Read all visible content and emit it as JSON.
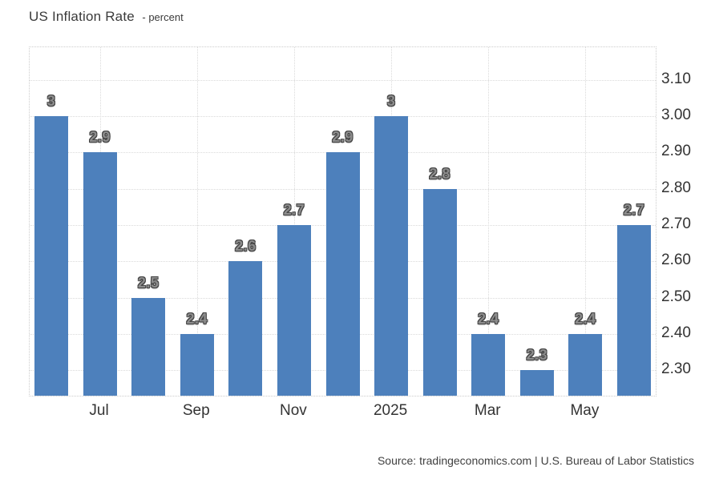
{
  "header": {
    "title": "US Inflation Rate",
    "subtitle": "- percent"
  },
  "footer": {
    "source": "Source: tradingeconomics.com | U.S. Bureau of Labor Statistics"
  },
  "chart_data": {
    "type": "bar",
    "title": "US Inflation Rate",
    "unit": "percent",
    "bar_color": "#4d80bc",
    "grid": true,
    "axis_side": "right",
    "ylim": [
      2.23,
      3.19
    ],
    "y_ticks": [
      {
        "value": 2.3,
        "label": "2.30"
      },
      {
        "value": 2.4,
        "label": "2.40"
      },
      {
        "value": 2.5,
        "label": "2.50"
      },
      {
        "value": 2.6,
        "label": "2.60"
      },
      {
        "value": 2.7,
        "label": "2.70"
      },
      {
        "value": 2.8,
        "label": "2.80"
      },
      {
        "value": 2.9,
        "label": "2.90"
      },
      {
        "value": 3.0,
        "label": "3.00"
      },
      {
        "value": 3.1,
        "label": "3.10"
      }
    ],
    "bars": [
      {
        "value": 3.0,
        "label": "3",
        "tick": ""
      },
      {
        "value": 2.9,
        "label": "2.9",
        "tick": "Jul"
      },
      {
        "value": 2.5,
        "label": "2.5",
        "tick": ""
      },
      {
        "value": 2.4,
        "label": "2.4",
        "tick": "Sep"
      },
      {
        "value": 2.6,
        "label": "2.6",
        "tick": ""
      },
      {
        "value": 2.7,
        "label": "2.7",
        "tick": "Nov"
      },
      {
        "value": 2.9,
        "label": "2.9",
        "tick": ""
      },
      {
        "value": 3.0,
        "label": "3",
        "tick": "2025"
      },
      {
        "value": 2.8,
        "label": "2.8",
        "tick": ""
      },
      {
        "value": 2.4,
        "label": "2.4",
        "tick": "Mar"
      },
      {
        "value": 2.3,
        "label": "2.3",
        "tick": ""
      },
      {
        "value": 2.4,
        "label": "2.4",
        "tick": "May"
      },
      {
        "value": 2.7,
        "label": "2.7",
        "tick": ""
      }
    ]
  }
}
